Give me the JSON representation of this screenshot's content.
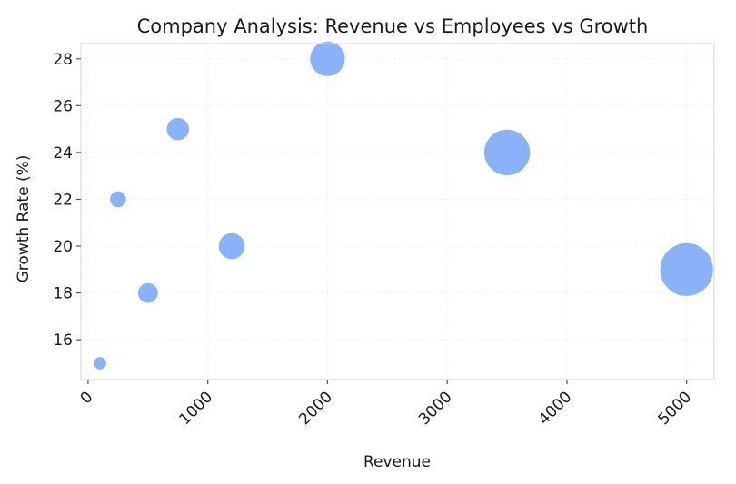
{
  "chart_data": {
    "type": "scatter",
    "title": "Company Analysis: Revenue vs Employees vs Growth",
    "xlabel": "Revenue",
    "ylabel": "Growth Rate (%)",
    "xlim": [
      -60,
      5230
    ],
    "ylim": [
      14.3,
      28.65
    ],
    "xticks": [
      0,
      1000,
      2000,
      3000,
      4000,
      5000
    ],
    "yticks": [
      16,
      18,
      20,
      22,
      24,
      26,
      28
    ],
    "grid": true,
    "marker_color": "#7aa7f7",
    "points": [
      {
        "x": 100,
        "y": 15,
        "size": 50
      },
      {
        "x": 250,
        "y": 22,
        "size": 80
      },
      {
        "x": 500,
        "y": 18,
        "size": 120
      },
      {
        "x": 750,
        "y": 25,
        "size": 150
      },
      {
        "x": 1200,
        "y": 20,
        "size": 200
      },
      {
        "x": 2000,
        "y": 28,
        "size": 350
      },
      {
        "x": 3500,
        "y": 24,
        "size": 600
      },
      {
        "x": 5000,
        "y": 19,
        "size": 800
      }
    ]
  }
}
